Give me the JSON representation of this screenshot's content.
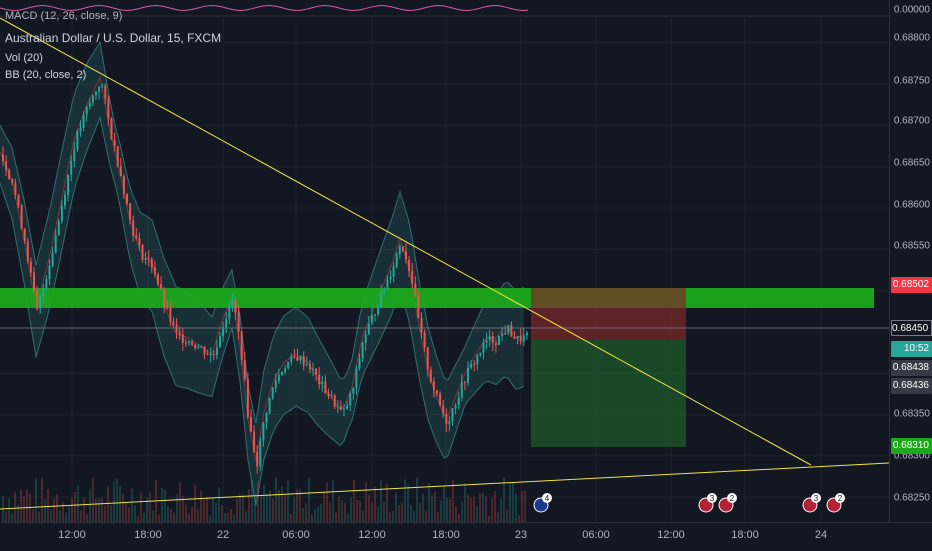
{
  "header": {
    "macd_label": "MACD (12, 26, close, 9)",
    "title": "Australian Dollar / U.S. Dollar, 15, FXCM",
    "volume_label": "Vol (20)",
    "bollinger_label": "BB (20, close, 2)"
  },
  "price_scale": {
    "macd_tick": "0.00000",
    "ticks": [
      "0.68800",
      "0.68750",
      "0.68700",
      "0.68650",
      "0.68600",
      "0.68550",
      "0.68400",
      "0.68350",
      "0.68300",
      "0.68250"
    ],
    "badges": {
      "target": {
        "value": "0.68502",
        "color": "#f23645"
      },
      "last": {
        "value": "0.68450",
        "color": "#131722"
      },
      "countdown": {
        "value": "10:52",
        "color": "#26a69a"
      },
      "bid": {
        "value": "0.68438",
        "color": "#363a45"
      },
      "ask": {
        "value": "0.68436",
        "color": "#363a45"
      },
      "stop": {
        "value": "0.68310",
        "color": "#1ba81b"
      }
    }
  },
  "time_scale": {
    "labels": [
      "12:00",
      "18:00",
      "22",
      "06:00",
      "12:00",
      "18:00",
      "23",
      "06:00",
      "12:00",
      "18:00",
      "24"
    ]
  },
  "events": [
    {
      "country": "AU",
      "count": "4"
    },
    {
      "country": "US",
      "count": "3"
    },
    {
      "country": "US",
      "count": "2"
    },
    {
      "country": "US",
      "count": "3"
    },
    {
      "country": "US",
      "count": "2"
    }
  ],
  "colors": {
    "background": "#131722",
    "up_candle": "#26a69a",
    "down_candle": "#ef5350",
    "zone_green": "#1ba81b",
    "trendline": "#f0e442",
    "bollinger_fill": "#2a6f70"
  },
  "chart_data": {
    "type": "candlestick",
    "symbol": "Australian Dollar / U.S. Dollar",
    "interval": "15",
    "source": "FXCM",
    "y_range": [
      0.6822,
      0.6883
    ],
    "candles": [],
    "candle_path_points": [
      [
        0,
        0.68665
      ],
      [
        12,
        0.6863
      ],
      [
        24,
        0.6856
      ],
      [
        36,
        0.68475
      ],
      [
        50,
        0.6854
      ],
      [
        62,
        0.6861
      ],
      [
        74,
        0.6868
      ],
      [
        86,
        0.6872
      ],
      [
        100,
        0.68755
      ],
      [
        110,
        0.6869
      ],
      [
        120,
        0.6864
      ],
      [
        130,
        0.6858
      ],
      [
        140,
        0.68545
      ],
      [
        152,
        0.6853
      ],
      [
        164,
        0.6848
      ],
      [
        176,
        0.68445
      ],
      [
        188,
        0.6844
      ],
      [
        200,
        0.6843
      ],
      [
        212,
        0.6842
      ],
      [
        222,
        0.6846
      ],
      [
        232,
        0.6849
      ],
      [
        240,
        0.6843
      ],
      [
        248,
        0.6834
      ],
      [
        256,
        0.6829
      ],
      [
        264,
        0.6835
      ],
      [
        274,
        0.6839
      ],
      [
        284,
        0.6841
      ],
      [
        296,
        0.6842
      ],
      [
        308,
        0.6841
      ],
      [
        318,
        0.6839
      ],
      [
        330,
        0.6837
      ],
      [
        342,
        0.6835
      ],
      [
        352,
        0.6838
      ],
      [
        362,
        0.6844
      ],
      [
        372,
        0.6847
      ],
      [
        382,
        0.685
      ],
      [
        392,
        0.6853
      ],
      [
        400,
        0.6856
      ],
      [
        410,
        0.6852
      ],
      [
        418,
        0.6846
      ],
      [
        428,
        0.684
      ],
      [
        436,
        0.6837
      ],
      [
        446,
        0.6834
      ],
      [
        456,
        0.6837
      ],
      [
        466,
        0.684
      ],
      [
        476,
        0.6842
      ],
      [
        486,
        0.6844
      ],
      [
        496,
        0.6844
      ],
      [
        506,
        0.68455
      ],
      [
        516,
        0.6844
      ],
      [
        526,
        0.68445
      ]
    ],
    "horizontal_zone": {
      "from": 0.68495,
      "to": 0.68515,
      "color": "green"
    },
    "position": {
      "entry": 0.6845,
      "target": 0.68502,
      "stop": 0.6831,
      "type": "short"
    },
    "trendlines": [
      {
        "from": [
          "x_start",
          0.68795
        ],
        "to": [
          "x_end",
          0.6829
        ]
      },
      {
        "from": [
          "x_start",
          0.68245
        ],
        "to": [
          "x_end",
          0.68291
        ]
      }
    ]
  }
}
